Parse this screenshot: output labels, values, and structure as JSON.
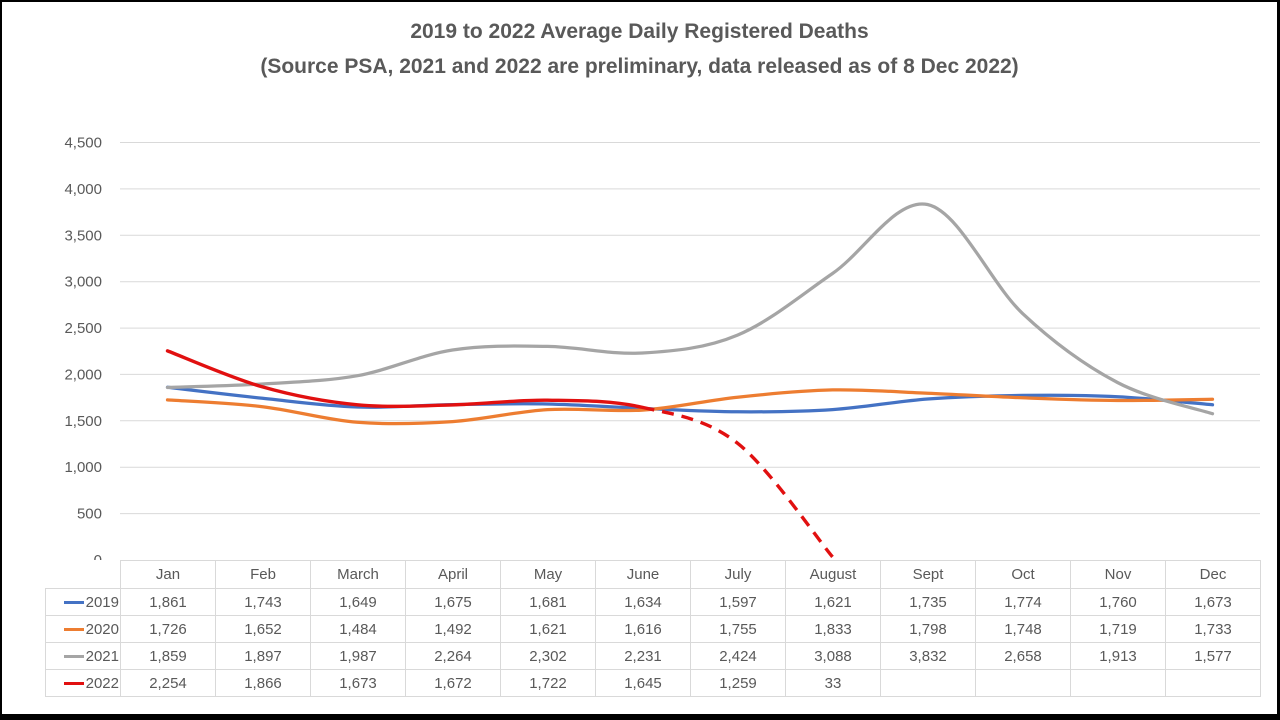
{
  "title": {
    "line1": "2019 to 2022 Average Daily Registered Deaths",
    "line2": "(Source PSA, 2021 and 2022 are preliminary, data released as of 8 Dec 2022)",
    "color": "#595959"
  },
  "colors": {
    "grid": "#d9d9d9",
    "axis_text": "#595959",
    "table_border": "#d9d9d9",
    "table_text": "#595959",
    "frame_border": "#000000",
    "background": "#ffffff"
  },
  "chart_data": {
    "type": "line",
    "title": "2019 to 2022 Average Daily Registered Deaths",
    "subtitle": "(Source PSA, 2021 and 2022 are preliminary, data released as of 8 Dec 2022)",
    "categories": [
      "Jan",
      "Feb",
      "March",
      "April",
      "May",
      "June",
      "July",
      "August",
      "Sept",
      "Oct",
      "Nov",
      "Dec"
    ],
    "series": [
      {
        "name": "2019",
        "color": "#4472c4",
        "line_style": "solid",
        "values": [
          1861,
          1743,
          1649,
          1675,
          1681,
          1634,
          1597,
          1621,
          1735,
          1774,
          1760,
          1673
        ]
      },
      {
        "name": "2020",
        "color": "#ed7d31",
        "line_style": "solid",
        "values": [
          1726,
          1652,
          1484,
          1492,
          1621,
          1616,
          1755,
          1833,
          1798,
          1748,
          1719,
          1733
        ]
      },
      {
        "name": "2021",
        "color": "#a5a5a5",
        "line_style": "solid",
        "values": [
          1859,
          1897,
          1987,
          2264,
          2302,
          2231,
          2424,
          3088,
          3832,
          2658,
          1913,
          1577
        ]
      },
      {
        "name": "2022",
        "color": "#e11010",
        "line_style": "solid-then-dashed",
        "dashed_from_index": 5,
        "values": [
          2254,
          1866,
          1673,
          1672,
          1722,
          1645,
          1259,
          33,
          null,
          null,
          null,
          null
        ]
      }
    ],
    "ylim": [
      0,
      4500
    ],
    "ytick_interval": 500,
    "yticks": [
      "0",
      "500",
      "1,000",
      "1,500",
      "2,000",
      "2,500",
      "3,000",
      "3,500",
      "4,000",
      "4,500"
    ],
    "grid": "horizontal",
    "smoothed": true,
    "legend_position": "table-left",
    "xlabel": "",
    "ylabel": ""
  }
}
